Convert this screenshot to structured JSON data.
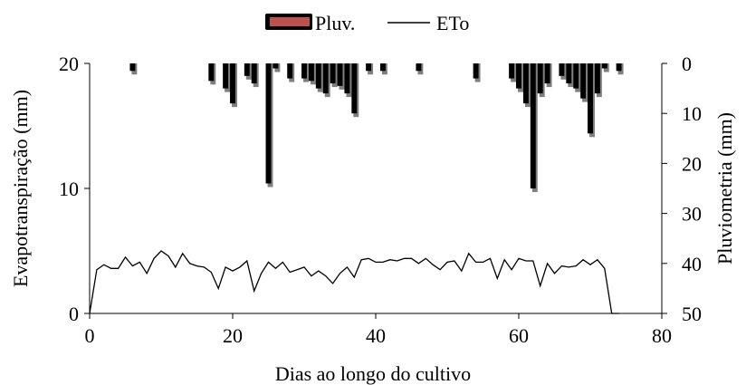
{
  "chart_data": {
    "type": "bar+line",
    "xlabel": "Dias ao longo do cultivo",
    "ylabel_left": "Evapotranspiração (mm)",
    "ylabel_right": "Pluviometria (mm)",
    "xlim": [
      0,
      80
    ],
    "ylim_left": [
      0,
      20
    ],
    "ylim_right": [
      0,
      50
    ],
    "right_axis_inverted": true,
    "xticks": [
      "0",
      "20",
      "40",
      "60",
      "80"
    ],
    "yticks_left": [
      "0",
      "10",
      "20"
    ],
    "yticks_right": [
      "0",
      "10",
      "20",
      "30",
      "40",
      "50"
    ],
    "grid": false,
    "legend_position": "top-center",
    "legend": [
      {
        "label": "Pluv.",
        "kind": "bar",
        "color": "#000000"
      },
      {
        "label": "ETo",
        "kind": "line",
        "color": "#000000"
      }
    ],
    "series": [
      {
        "name": "ETo",
        "kind": "line",
        "axis": "left",
        "x": [
          0,
          1,
          2,
          3,
          4,
          5,
          6,
          7,
          8,
          9,
          10,
          11,
          12,
          13,
          14,
          15,
          16,
          17,
          18,
          19,
          20,
          21,
          22,
          23,
          24,
          25,
          26,
          27,
          28,
          29,
          30,
          31,
          32,
          33,
          34,
          35,
          36,
          37,
          38,
          39,
          40,
          41,
          42,
          43,
          44,
          45,
          46,
          47,
          48,
          49,
          50,
          51,
          52,
          53,
          54,
          55,
          56,
          57,
          58,
          59,
          60,
          61,
          62,
          63,
          64,
          65,
          66,
          67,
          68,
          69,
          70,
          71,
          72,
          73,
          74
        ],
        "y": [
          0,
          3.5,
          3.9,
          3.6,
          3.6,
          4.5,
          3.8,
          4.1,
          3.2,
          4.4,
          5.0,
          4.6,
          3.7,
          4.8,
          4.0,
          3.8,
          3.7,
          3.3,
          2.0,
          3.7,
          3.4,
          3.7,
          4.2,
          1.8,
          3.2,
          4.1,
          3.6,
          4.1,
          3.3,
          3.5,
          3.7,
          3.0,
          3.4,
          3.0,
          2.4,
          3.2,
          3.7,
          2.9,
          4.3,
          4.4,
          4.1,
          4.1,
          4.3,
          4.2,
          4.4,
          4.4,
          4.0,
          4.4,
          3.9,
          3.5,
          4.1,
          4.2,
          3.4,
          4.8,
          4.1,
          4.1,
          4.4,
          2.8,
          4.3,
          3.5,
          4.4,
          4.2,
          4.2,
          2.2,
          4.0,
          3.2,
          3.8,
          3.7,
          3.8,
          4.3,
          3.9,
          4.3,
          3.6,
          0,
          0
        ]
      },
      {
        "name": "Pluv.",
        "kind": "bar",
        "axis": "right",
        "x": [
          6,
          17,
          19,
          20,
          22,
          23,
          25,
          26,
          28,
          30,
          31,
          32,
          33,
          34,
          35,
          36,
          37,
          39,
          41,
          46,
          54,
          59,
          60,
          61,
          62,
          63,
          64,
          66,
          67,
          68,
          69,
          70,
          71,
          72,
          74
        ],
        "values": [
          1.5,
          3.5,
          5,
          8,
          2.5,
          4,
          24,
          1,
          3,
          3,
          3.5,
          5,
          6,
          4,
          4.5,
          6,
          10,
          1.5,
          1.5,
          1.5,
          3,
          3,
          5,
          8,
          25,
          6,
          4,
          2.5,
          4,
          5,
          7,
          14,
          6,
          1,
          1.5
        ]
      }
    ]
  }
}
